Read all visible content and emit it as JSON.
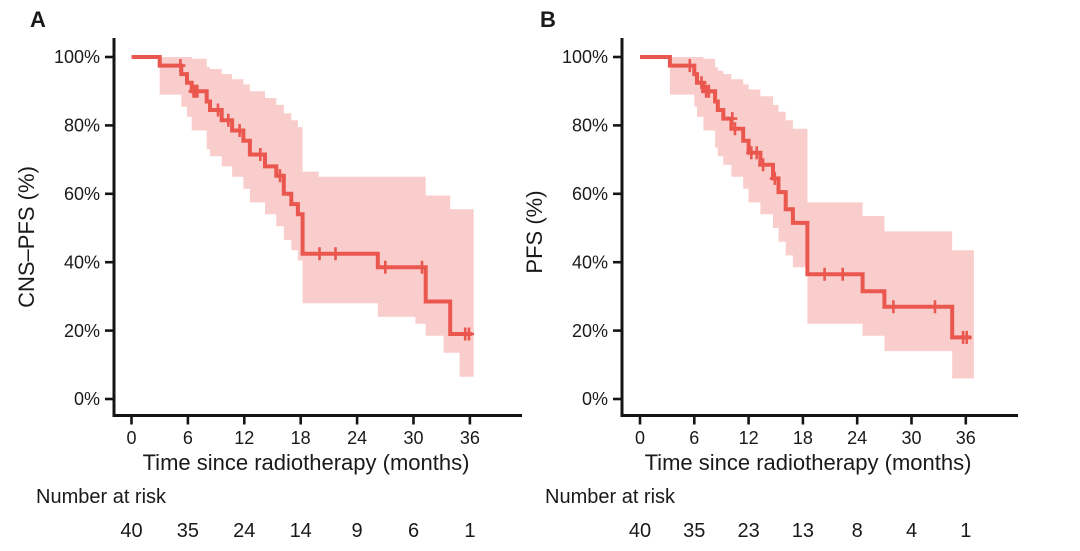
{
  "figure": {
    "background": "#ffffff",
    "text_color": "#1a1a1a",
    "axis_color": "#141414",
    "line_color": "#ea574f",
    "band_color": "#f9cdcb"
  },
  "chart_data": [
    {
      "type": "line",
      "subtype": "kaplan-meier-step",
      "panel_label": "A",
      "ylabel": "CNS–PFS (%)",
      "xlabel": "Time since radiotherapy (months)",
      "xlim": [
        0,
        36
      ],
      "ylim": [
        0,
        100
      ],
      "grid": false,
      "legend": false,
      "x_ticks": [
        0,
        6,
        12,
        18,
        24,
        30,
        36
      ],
      "x_tick_labels": [
        "0",
        "6",
        "12",
        "18",
        "24",
        "30",
        "36"
      ],
      "y_ticks": [
        100,
        80,
        60,
        40,
        20,
        0
      ],
      "y_tick_labels": [
        "100%",
        "80%",
        "60%",
        "40%",
        "20%",
        "0%"
      ],
      "line_color": "#ea574f",
      "band_color": "#f9cdcb",
      "survival_steps": [
        [
          0,
          100
        ],
        [
          3.0,
          97.5
        ],
        [
          5.3,
          95
        ],
        [
          5.9,
          92.5
        ],
        [
          6.4,
          90
        ],
        [
          8.0,
          87
        ],
        [
          8.35,
          84.5
        ],
        [
          9.6,
          81.5
        ],
        [
          10.7,
          78.5
        ],
        [
          11.9,
          75.5
        ],
        [
          12.6,
          71.5
        ],
        [
          14.2,
          68
        ],
        [
          15.4,
          65.3
        ],
        [
          16.2,
          60
        ],
        [
          17.0,
          57
        ],
        [
          17.7,
          54
        ],
        [
          18.2,
          42.5
        ],
        [
          26.2,
          38.5
        ],
        [
          31.3,
          28.5
        ],
        [
          33.9,
          19
        ]
      ],
      "curve_t_end": 36.2,
      "censor_marks": [
        [
          5.2,
          97.5
        ],
        [
          6.6,
          90
        ],
        [
          6.8,
          90
        ],
        [
          7.0,
          90
        ],
        [
          9.2,
          84.5
        ],
        [
          10.3,
          81.5
        ],
        [
          11.5,
          78.5
        ],
        [
          13.7,
          71.5
        ],
        [
          15.8,
          65.3
        ],
        [
          20.0,
          42.5
        ],
        [
          21.7,
          42.5
        ],
        [
          27.0,
          38.5
        ],
        [
          30.9,
          38.5
        ],
        [
          35.5,
          19
        ],
        [
          35.9,
          19
        ]
      ],
      "confidence_band": [
        [
          3.0,
          89,
          100
        ],
        [
          5.3,
          85.5,
          100
        ],
        [
          5.9,
          82.5,
          100
        ],
        [
          6.4,
          78.5,
          99.5
        ],
        [
          8.0,
          73,
          97
        ],
        [
          8.35,
          71,
          96.5
        ],
        [
          9.6,
          68,
          95
        ],
        [
          10.7,
          65,
          93.5
        ],
        [
          11.9,
          61.5,
          92
        ],
        [
          12.6,
          57.5,
          90
        ],
        [
          14.2,
          54,
          88
        ],
        [
          15.4,
          50.5,
          86
        ],
        [
          16.2,
          46.5,
          83.5
        ],
        [
          17.0,
          43.5,
          81.5
        ],
        [
          17.7,
          40.5,
          79.5
        ],
        [
          18.2,
          28,
          66.5
        ],
        [
          19.9,
          28,
          65
        ],
        [
          26.2,
          24,
          65
        ],
        [
          30.2,
          22,
          65
        ],
        [
          31.3,
          18.5,
          59.5
        ],
        [
          33.2,
          13.5,
          59.5
        ],
        [
          33.9,
          13.5,
          55.5
        ],
        [
          34.9,
          6.5,
          55.5
        ]
      ],
      "band_t_end": 36.4,
      "number_at_risk": {
        "label": "Number at risk",
        "times": [
          0,
          6,
          12,
          18,
          24,
          30,
          36
        ],
        "values": [
          "40",
          "35",
          "24",
          "14",
          "9",
          "6",
          "1"
        ]
      }
    },
    {
      "type": "line",
      "subtype": "kaplan-meier-step",
      "panel_label": "B",
      "ylabel": "PFS (%)",
      "xlabel": "Time since radiotherapy (months)",
      "xlim": [
        0,
        36
      ],
      "ylim": [
        0,
        100
      ],
      "grid": false,
      "legend": false,
      "x_ticks": [
        0,
        6,
        12,
        18,
        24,
        30,
        36
      ],
      "x_tick_labels": [
        "0",
        "6",
        "12",
        "18",
        "24",
        "30",
        "36"
      ],
      "y_ticks": [
        100,
        80,
        60,
        40,
        20,
        0
      ],
      "y_tick_labels": [
        "100%",
        "80%",
        "60%",
        "40%",
        "20%",
        "0%"
      ],
      "line_color": "#ea574f",
      "band_color": "#f9cdcb",
      "survival_steps": [
        [
          0,
          100
        ],
        [
          3.3,
          97.5
        ],
        [
          6.0,
          95
        ],
        [
          6.3,
          92.5
        ],
        [
          7.0,
          90
        ],
        [
          8.3,
          87
        ],
        [
          8.6,
          84.5
        ],
        [
          9.2,
          82
        ],
        [
          10.1,
          79
        ],
        [
          11.4,
          75.5
        ],
        [
          12.0,
          72
        ],
        [
          13.3,
          68.5
        ],
        [
          14.7,
          64.5
        ],
        [
          15.3,
          60.5
        ],
        [
          16.1,
          55.5
        ],
        [
          16.9,
          51.5
        ],
        [
          18.5,
          36.5
        ],
        [
          24.6,
          31.5
        ],
        [
          27.0,
          27
        ],
        [
          34.5,
          18
        ]
      ],
      "curve_t_end": 36.6,
      "censor_marks": [
        [
          5.5,
          97.5
        ],
        [
          6.8,
          92.5
        ],
        [
          7.3,
          90
        ],
        [
          7.6,
          90
        ],
        [
          10.2,
          82
        ],
        [
          10.5,
          79
        ],
        [
          12.3,
          72
        ],
        [
          12.9,
          72
        ],
        [
          13.6,
          68.5
        ],
        [
          14.9,
          64.5
        ],
        [
          20.4,
          36.5
        ],
        [
          22.4,
          36.5
        ],
        [
          28.0,
          27
        ],
        [
          32.6,
          27
        ],
        [
          35.7,
          18
        ],
        [
          36.1,
          18
        ]
      ],
      "confidence_band": [
        [
          3.3,
          89,
          100
        ],
        [
          6.0,
          85.5,
          100
        ],
        [
          6.3,
          82.5,
          100
        ],
        [
          7.0,
          78.5,
          99.5
        ],
        [
          8.3,
          73.5,
          97
        ],
        [
          8.6,
          71,
          96
        ],
        [
          9.2,
          68.5,
          95
        ],
        [
          10.1,
          65,
          93.5
        ],
        [
          11.4,
          61.5,
          92
        ],
        [
          12.0,
          57.5,
          90.5
        ],
        [
          13.3,
          54,
          88.5
        ],
        [
          14.7,
          50,
          86
        ],
        [
          15.3,
          46,
          84
        ],
        [
          16.1,
          42,
          81.5
        ],
        [
          16.9,
          38.5,
          79
        ],
        [
          18.5,
          22,
          57.5
        ],
        [
          24.6,
          18.5,
          53.5
        ],
        [
          27.0,
          14,
          49
        ],
        [
          34.5,
          6,
          43.5
        ]
      ],
      "band_t_end": 36.9,
      "number_at_risk": {
        "label": "Number at risk",
        "times": [
          0,
          6,
          12,
          18,
          24,
          30,
          36
        ],
        "values": [
          "40",
          "35",
          "23",
          "13",
          "8",
          "4",
          "1"
        ]
      }
    }
  ]
}
